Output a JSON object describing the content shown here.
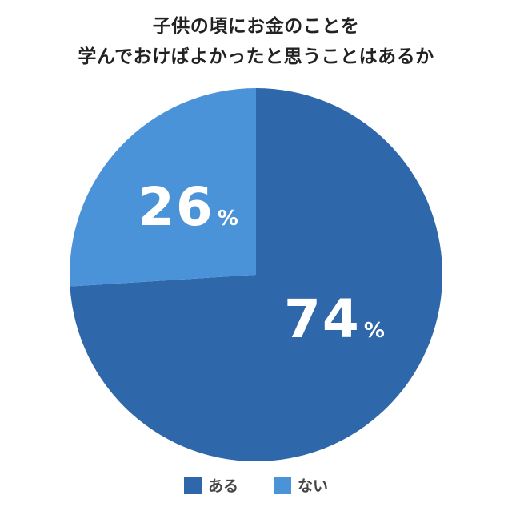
{
  "chart_data": {
    "type": "pie",
    "title": "子供の頃にお金のことを学んでおけばよかったと思うことはあるか",
    "title_lines": [
      "子供の頃にお金のことを",
      "学んでおけばよかったと思うことはあるか"
    ],
    "categories": [
      "ある",
      "ない"
    ],
    "values": [
      74,
      26
    ],
    "unit": "%",
    "colors": [
      "#2e67aa",
      "#4b93d8"
    ],
    "labels": [
      {
        "category": "ある",
        "value": "74",
        "unit": "%"
      },
      {
        "category": "ない",
        "value": "26",
        "unit": "%"
      }
    ],
    "start_angle_deg": 0,
    "direction": "clockwise",
    "legend_position": "bottom"
  },
  "legend": {
    "items": [
      {
        "label": "ある",
        "color": "#2e67aa"
      },
      {
        "label": "ない",
        "color": "#4b93d8"
      }
    ]
  }
}
